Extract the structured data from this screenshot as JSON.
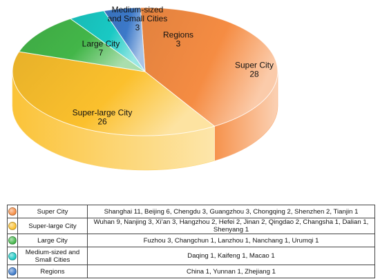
{
  "chart_data": {
    "type": "pie",
    "title": "",
    "three_d": true,
    "slices": [
      {
        "category": "Super City",
        "value": 28,
        "color": "#F58C43",
        "cities": "Shanghai 11, Beijing 6, Chengdu 3, Guangzhou 3, Chongqing 2, Shenzhen  2, Tianjin 1"
      },
      {
        "category": "Super-large City",
        "value": 26,
        "color": "#FBC02D",
        "cities": "Wuhan 9, Nanjing 3, Xi’an 3, Hangzhou 2, Hefei 2, Jinan 2, Qingdao 2, Changsha 1, Dalian 1, Shenyang 1"
      },
      {
        "category": "Large City",
        "value": 7,
        "color": "#43B649",
        "cities": "Fuzhou 3, Changchun 1, Lanzhou 1, Nanchang 1, Urumqi 1"
      },
      {
        "category": "Medium-sized and Small Cities",
        "value": 3,
        "color": "#19C9C4",
        "cities": "Daqing 1, Kaifeng 1, Macao 1"
      },
      {
        "category": "Regions",
        "value": 3,
        "color": "#3C79C9",
        "cities": "China 1, Yunnan 1, Zhejiang 1"
      }
    ],
    "labels": [
      {
        "lines": [
          "Super City",
          "28"
        ]
      },
      {
        "lines": [
          "Super-large City",
          "26"
        ]
      },
      {
        "lines": [
          "Large City",
          "7"
        ]
      },
      {
        "lines": [
          "Medium-sized",
          "and Small Cities",
          "3"
        ]
      },
      {
        "lines": [
          "Regions",
          "3"
        ]
      }
    ],
    "legend_placement": "bottom-table"
  }
}
